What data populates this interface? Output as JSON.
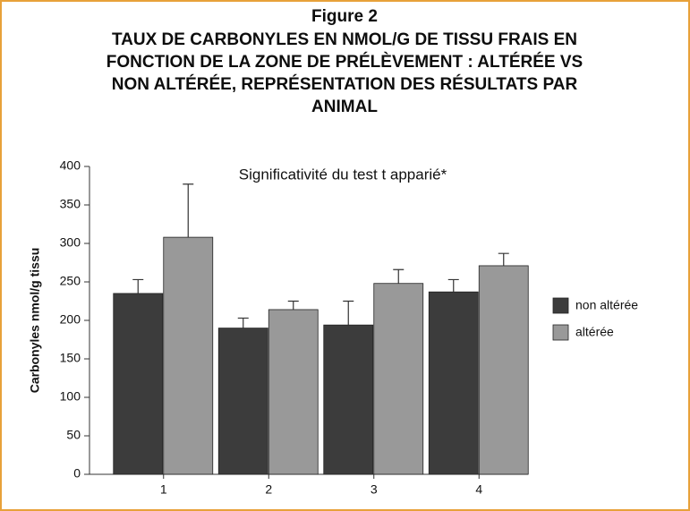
{
  "chart_data": {
    "type": "bar",
    "title": "Figure 2",
    "subtitle": [
      "TAUX DE CARBONYLES EN NMOL/G DE TISSU FRAIS EN",
      "FONCTION DE LA ZONE DE PRÉLÈVEMENT : ALTÉRÉE VS",
      "NON ALTÉRÉE, REPRÉSENTATION DES RÉSULTATS PAR",
      "ANIMAL"
    ],
    "annotation": "Significativité du test t apparié*",
    "y_label": "Carbonyles nmol/g tissu",
    "categories": [
      "1",
      "2",
      "3",
      "4"
    ],
    "series": [
      {
        "name": "non altérée",
        "color": "#3c3c3c",
        "values": [
          235,
          190,
          194,
          237
        ],
        "errors": [
          18,
          13,
          31,
          16
        ]
      },
      {
        "name": "altérée",
        "color": "#999999",
        "values": [
          308,
          214,
          248,
          271
        ],
        "errors": [
          69,
          11,
          18,
          16
        ]
      }
    ],
    "ylim": [
      0,
      400
    ],
    "yticks": [
      0,
      50,
      100,
      150,
      200,
      250,
      300,
      350,
      400
    ],
    "legend": "right"
  }
}
